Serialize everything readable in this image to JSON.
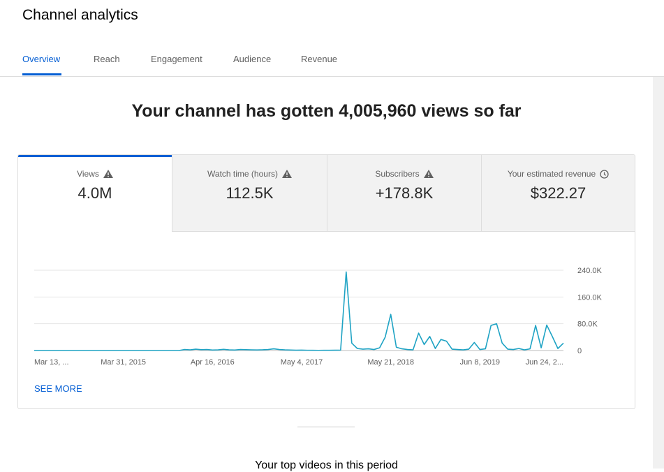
{
  "header": {
    "title": "Channel analytics"
  },
  "tabs": [
    "Overview",
    "Reach",
    "Engagement",
    "Audience",
    "Revenue"
  ],
  "headline": "Your channel has gotten 4,005,960 views so far",
  "metrics": [
    {
      "label": "Views",
      "value": "4.0M"
    },
    {
      "label": "Watch time (hours)",
      "value": "112.5K"
    },
    {
      "label": "Subscribers",
      "value": "+178.8K"
    },
    {
      "label": "Your estimated revenue",
      "value": "$322.27"
    }
  ],
  "see_more": "SEE MORE",
  "footer_heading": "Your top videos in this period",
  "chart_data": {
    "type": "line",
    "color": "#1fa3c4",
    "grid": true,
    "categories": [
      "Mar 13, ...",
      null,
      null,
      null,
      null,
      null,
      null,
      null,
      null,
      null,
      null,
      null,
      null,
      null,
      null,
      null,
      "Mar 31, 2015",
      null,
      null,
      null,
      null,
      null,
      null,
      null,
      null,
      null,
      null,
      null,
      null,
      null,
      null,
      null,
      "Apr 16, 2016",
      null,
      null,
      null,
      null,
      null,
      null,
      null,
      null,
      null,
      null,
      null,
      null,
      null,
      null,
      null,
      "May 4, 2017",
      null,
      null,
      null,
      null,
      null,
      null,
      null,
      null,
      null,
      null,
      null,
      null,
      null,
      null,
      null,
      "May 21, 2018",
      null,
      null,
      null,
      null,
      null,
      null,
      null,
      null,
      null,
      null,
      null,
      null,
      null,
      null,
      null,
      "Jun 8, 2019",
      null,
      null,
      null,
      null,
      null,
      null,
      null,
      null,
      null,
      null,
      null,
      null,
      null,
      null,
      "Jun 24, 2..."
    ],
    "values": [
      0,
      0,
      0,
      0,
      0,
      0,
      0,
      0,
      0,
      0,
      0,
      0,
      0,
      0,
      0,
      0,
      0,
      0,
      0,
      0,
      0,
      0,
      0,
      0,
      0,
      0,
      0,
      3000,
      2000,
      4000,
      2500,
      3000,
      1500,
      2000,
      3500,
      2000,
      1500,
      3000,
      2500,
      2000,
      1800,
      2200,
      3000,
      5000,
      3000,
      2000,
      1500,
      1000,
      1200,
      800,
      600,
      500,
      800,
      700,
      1000,
      1200,
      235000,
      22000,
      6000,
      4000,
      5000,
      3000,
      8000,
      40000,
      108000,
      10000,
      5000,
      3000,
      2000,
      52000,
      18000,
      42000,
      6000,
      33000,
      28000,
      4000,
      3000,
      2000,
      4000,
      24000,
      3000,
      5000,
      75000,
      80000,
      22000,
      4000,
      3000,
      6000,
      2000,
      5000,
      75000,
      8000,
      76000,
      42000,
      6000,
      22000
    ],
    "ylim": [
      0,
      240000
    ],
    "yticks": [
      0,
      {
        "value": 80000,
        "label": "80.0K"
      },
      {
        "value": 160000,
        "label": "160.0K"
      },
      {
        "value": 240000,
        "label": "240.0K"
      }
    ]
  }
}
